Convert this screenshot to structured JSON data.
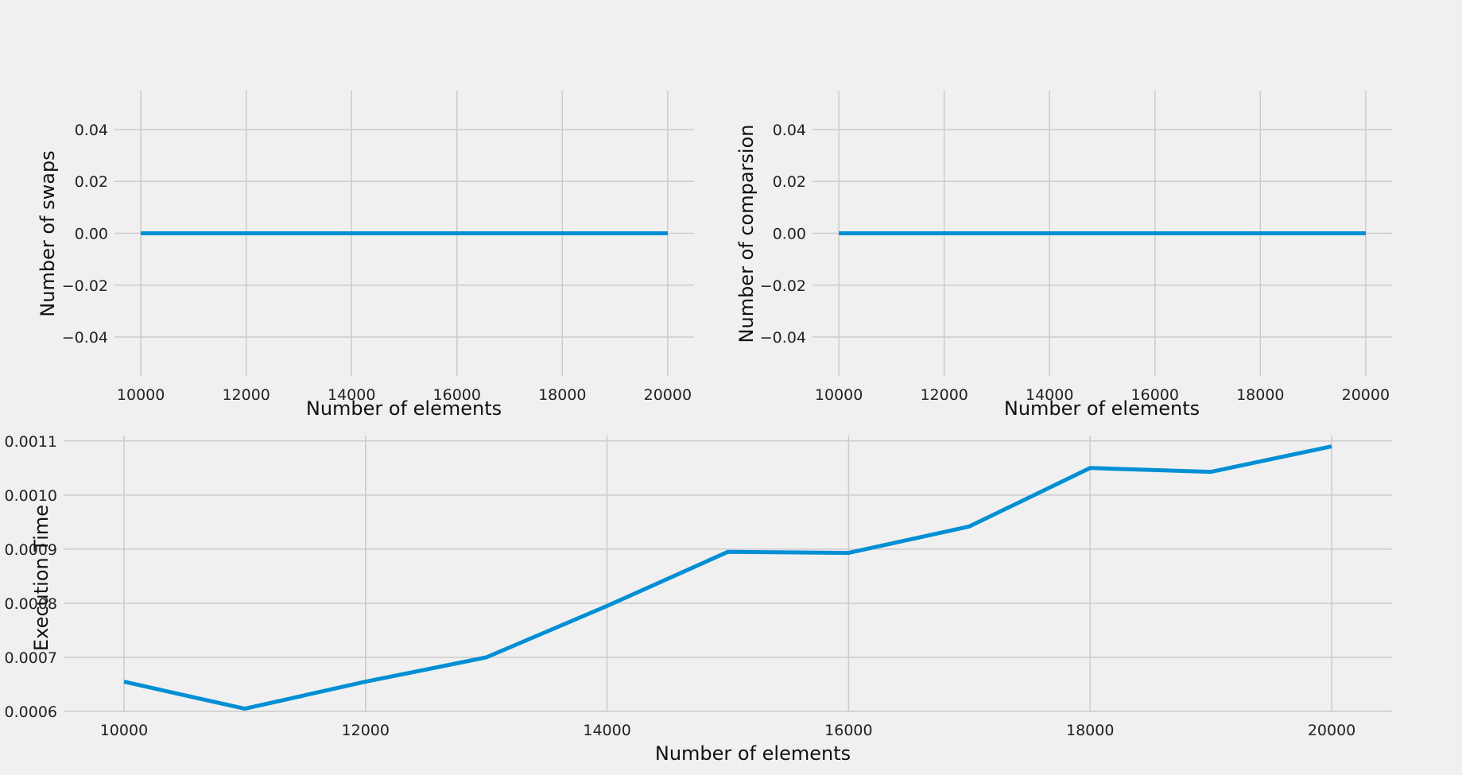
{
  "colors": {
    "background": "#f0f0f0",
    "grid": "#cbcbcb",
    "series": "#008fd5"
  },
  "chart_data": [
    {
      "type": "line",
      "xlabel": "Number of elements",
      "ylabel": "Number of swaps",
      "xlim": [
        9500,
        20500
      ],
      "ylim": [
        -0.055,
        0.055
      ],
      "xticks": [
        10000,
        12000,
        14000,
        16000,
        18000,
        20000
      ],
      "xtick_labels": [
        "10000",
        "12000",
        "14000",
        "16000",
        "18000",
        "20000"
      ],
      "yticks": [
        0.04,
        0.02,
        0.0,
        -0.02,
        -0.04
      ],
      "ytick_labels": [
        "0.04",
        "0.02",
        "0.00",
        "−0.02",
        "−0.04"
      ],
      "grid": true,
      "x": [
        10000,
        11000,
        12000,
        13000,
        14000,
        15000,
        16000,
        17000,
        18000,
        19000,
        20000
      ],
      "series": [
        {
          "values": [
            0,
            0,
            0,
            0,
            0,
            0,
            0,
            0,
            0,
            0,
            0
          ]
        }
      ]
    },
    {
      "type": "line",
      "xlabel": "Number of elements",
      "ylabel": "Number of comparsion",
      "xlim": [
        9500,
        20500
      ],
      "ylim": [
        -0.055,
        0.055
      ],
      "xticks": [
        10000,
        12000,
        14000,
        16000,
        18000,
        20000
      ],
      "xtick_labels": [
        "10000",
        "12000",
        "14000",
        "16000",
        "18000",
        "20000"
      ],
      "yticks": [
        0.04,
        0.02,
        0.0,
        -0.02,
        -0.04
      ],
      "ytick_labels": [
        "0.04",
        "0.02",
        "0.00",
        "−0.02",
        "−0.04"
      ],
      "grid": true,
      "x": [
        10000,
        11000,
        12000,
        13000,
        14000,
        15000,
        16000,
        17000,
        18000,
        19000,
        20000
      ],
      "series": [
        {
          "values": [
            0,
            0,
            0,
            0,
            0,
            0,
            0,
            0,
            0,
            0,
            0
          ]
        }
      ]
    },
    {
      "type": "line",
      "xlabel": "Number of elements",
      "ylabel": "Execution Time",
      "xlim": [
        9500,
        20500
      ],
      "ylim": [
        0.0006,
        0.00111
      ],
      "xticks": [
        10000,
        12000,
        14000,
        16000,
        18000,
        20000
      ],
      "xtick_labels": [
        "10000",
        "12000",
        "14000",
        "16000",
        "18000",
        "20000"
      ],
      "yticks": [
        0.0011,
        0.001,
        0.0009,
        0.0008,
        0.0007,
        0.0006
      ],
      "ytick_labels": [
        "0.0011",
        "0.0010",
        "0.0009",
        "0.0008",
        "0.0007",
        "0.0006"
      ],
      "grid": true,
      "x": [
        10000,
        11000,
        12000,
        13000,
        14000,
        15000,
        16000,
        17000,
        18000,
        19000,
        20000
      ],
      "series": [
        {
          "values": [
            0.000655,
            0.000605,
            0.000655,
            0.0007,
            0.000795,
            0.000895,
            0.000893,
            0.000942,
            0.00105,
            0.001043,
            0.00109
          ]
        }
      ]
    }
  ]
}
